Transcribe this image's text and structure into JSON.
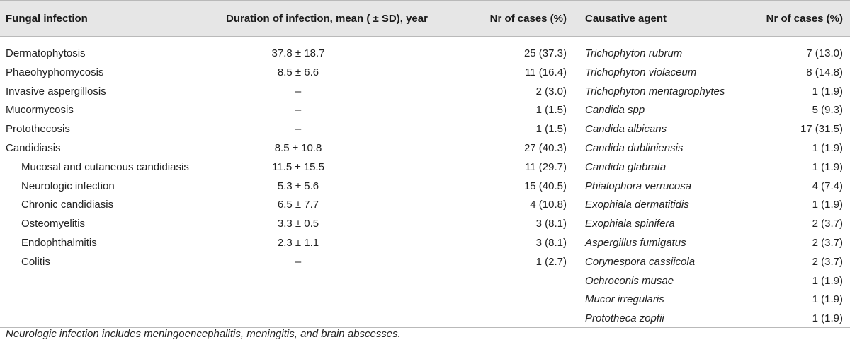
{
  "headers": {
    "infection": "Fungal infection",
    "duration": "Duration of infection, mean ( ± SD), year",
    "cases1": "Nr of cases (%)",
    "agent": "Causative agent",
    "cases2": "Nr of cases (%)"
  },
  "infections": [
    {
      "name": "Dermatophytosis",
      "duration": "37.8 ± 18.7",
      "cases": "25 (37.3)",
      "sub": false
    },
    {
      "name": "Phaeohyphomycosis",
      "duration": "8.5 ± 6.6",
      "cases": "11 (16.4)",
      "sub": false
    },
    {
      "name": "Invasive aspergillosis",
      "duration": "–",
      "cases": "2 (3.0)",
      "sub": false
    },
    {
      "name": "Mucormycosis",
      "duration": "–",
      "cases": "1 (1.5)",
      "sub": false
    },
    {
      "name": "Protothecosis",
      "duration": "–",
      "cases": "1 (1.5)",
      "sub": false
    },
    {
      "name": "Candidiasis",
      "duration": "8.5 ± 10.8",
      "cases": "27 (40.3)",
      "sub": false
    },
    {
      "name": "Mucosal and cutaneous candidiasis",
      "duration": "11.5 ± 15.5",
      "cases": "11 (29.7)",
      "sub": true
    },
    {
      "name": "Neurologic infection",
      "duration": "5.3 ± 5.6",
      "cases": "15 (40.5)",
      "sub": true
    },
    {
      "name": "Chronic candidiasis",
      "duration": "6.5 ± 7.7",
      "cases": "4 (10.8)",
      "sub": true
    },
    {
      "name": "Osteomyelitis",
      "duration": "3.3 ± 0.5",
      "cases": "3 (8.1)",
      "sub": true
    },
    {
      "name": "Endophthalmitis",
      "duration": "2.3 ± 1.1",
      "cases": "3 (8.1)",
      "sub": true
    },
    {
      "name": "Colitis",
      "duration": "–",
      "cases": "1 (2.7)",
      "sub": true
    }
  ],
  "agents": [
    {
      "name": "Trichophyton rubrum",
      "cases": "7 (13.0)"
    },
    {
      "name": "Trichophyton violaceum",
      "cases": "8 (14.8)"
    },
    {
      "name": "Trichophyton mentagrophytes",
      "cases": "1 (1.9)"
    },
    {
      "name": "Candida spp",
      "cases": "5 (9.3)"
    },
    {
      "name": "Candida albicans",
      "cases": "17 (31.5)"
    },
    {
      "name": "Candida dubliniensis",
      "cases": "1 (1.9)"
    },
    {
      "name": "Candida glabrata",
      "cases": "1 (1.9)"
    },
    {
      "name": "Phialophora verrucosa",
      "cases": "4 (7.4)"
    },
    {
      "name": "Exophiala dermatitidis",
      "cases": "1 (1.9)"
    },
    {
      "name": "Exophiala spinifera",
      "cases": "2 (3.7)"
    },
    {
      "name": "Aspergillus fumigatus",
      "cases": "2 (3.7)"
    },
    {
      "name": "Corynespora cassiicola",
      "cases": "2 (3.7)"
    },
    {
      "name": "Ochroconis musae",
      "cases": "1 (1.9)"
    },
    {
      "name": "Mucor irregularis",
      "cases": "1 (1.9)"
    },
    {
      "name": "Prototheca zopfii",
      "cases": "1 (1.9)"
    }
  ],
  "footnote": "Neurologic infection includes meningoencephalitis, meningitis, and brain abscesses."
}
